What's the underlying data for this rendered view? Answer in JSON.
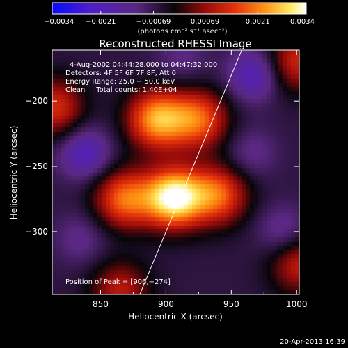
{
  "chart_data": {
    "type": "heatmap",
    "title": "Reconstructed RHESSI Image",
    "xlabel": "Heliocentric X (arcsec)",
    "ylabel": "Heliocentric Y (arcsec)",
    "xlim": [
      813,
      1002
    ],
    "ylim": [
      -348,
      -161
    ],
    "x_ticks": [
      850,
      900,
      950,
      1000
    ],
    "x_tick_labels": [
      "850",
      "900",
      "950",
      "1000"
    ],
    "y_ticks": [
      -200,
      -250,
      -300
    ],
    "y_tick_labels": [
      "−200",
      "−250",
      "−300"
    ],
    "colorbar": {
      "range": [
        -0.0034,
        0.0034
      ],
      "ticks": [
        -0.0034,
        -0.0021,
        -0.00069,
        0.00069,
        0.0021,
        0.0034
      ],
      "tick_labels": [
        "−0.0034",
        "−0.0021",
        "−0.00069",
        "0.00069",
        "0.0021",
        "0.0034"
      ],
      "unit": "(photons cm⁻² s⁻¹ asec⁻²)"
    },
    "sources": [
      {
        "x": 906,
        "y": -274,
        "peak": 0.0034
      },
      {
        "x": 893,
        "y": -214,
        "peak": 0.0024
      },
      {
        "x": 925,
        "y": -214,
        "peak": 0.0018
      },
      {
        "x": 868,
        "y": -275,
        "peak": 0.0019
      },
      {
        "x": 940,
        "y": -272,
        "peak": 0.0018
      },
      {
        "x": 815,
        "y": -205,
        "peak": 0.0013
      },
      {
        "x": 1000,
        "y": -170,
        "peak": 0.0012
      },
      {
        "x": 1002,
        "y": -325,
        "peak": 0.0011
      },
      {
        "x": 865,
        "y": -345,
        "peak": 0.001
      }
    ],
    "minima": [
      {
        "x": 838,
        "y": -240,
        "depth": -0.0021
      },
      {
        "x": 967,
        "y": -180,
        "depth": -0.0021
      },
      {
        "x": 965,
        "y": -240,
        "depth": -0.0013
      },
      {
        "x": 990,
        "y": -300,
        "depth": -0.0015
      },
      {
        "x": 835,
        "y": -305,
        "depth": -0.0013
      },
      {
        "x": 912,
        "y": -168,
        "depth": -0.0012
      }
    ],
    "limb_line": [
      [
        880,
        -348
      ],
      [
        958,
        -161
      ]
    ]
  },
  "annotations": {
    "time": "4-Aug-2002 04:44:28.000 to 04:47:32.000",
    "detectors": "Detectors: 4F 5F 6F 7F 8F, Att 0",
    "energy": "Energy Range: 25.0 − 50.0 keV",
    "clean": "Clean     Total counts: 1.40E+04",
    "peak": "Position of Peak = [906,−274]"
  },
  "footer_date": "20-Apr-2013 16:39"
}
